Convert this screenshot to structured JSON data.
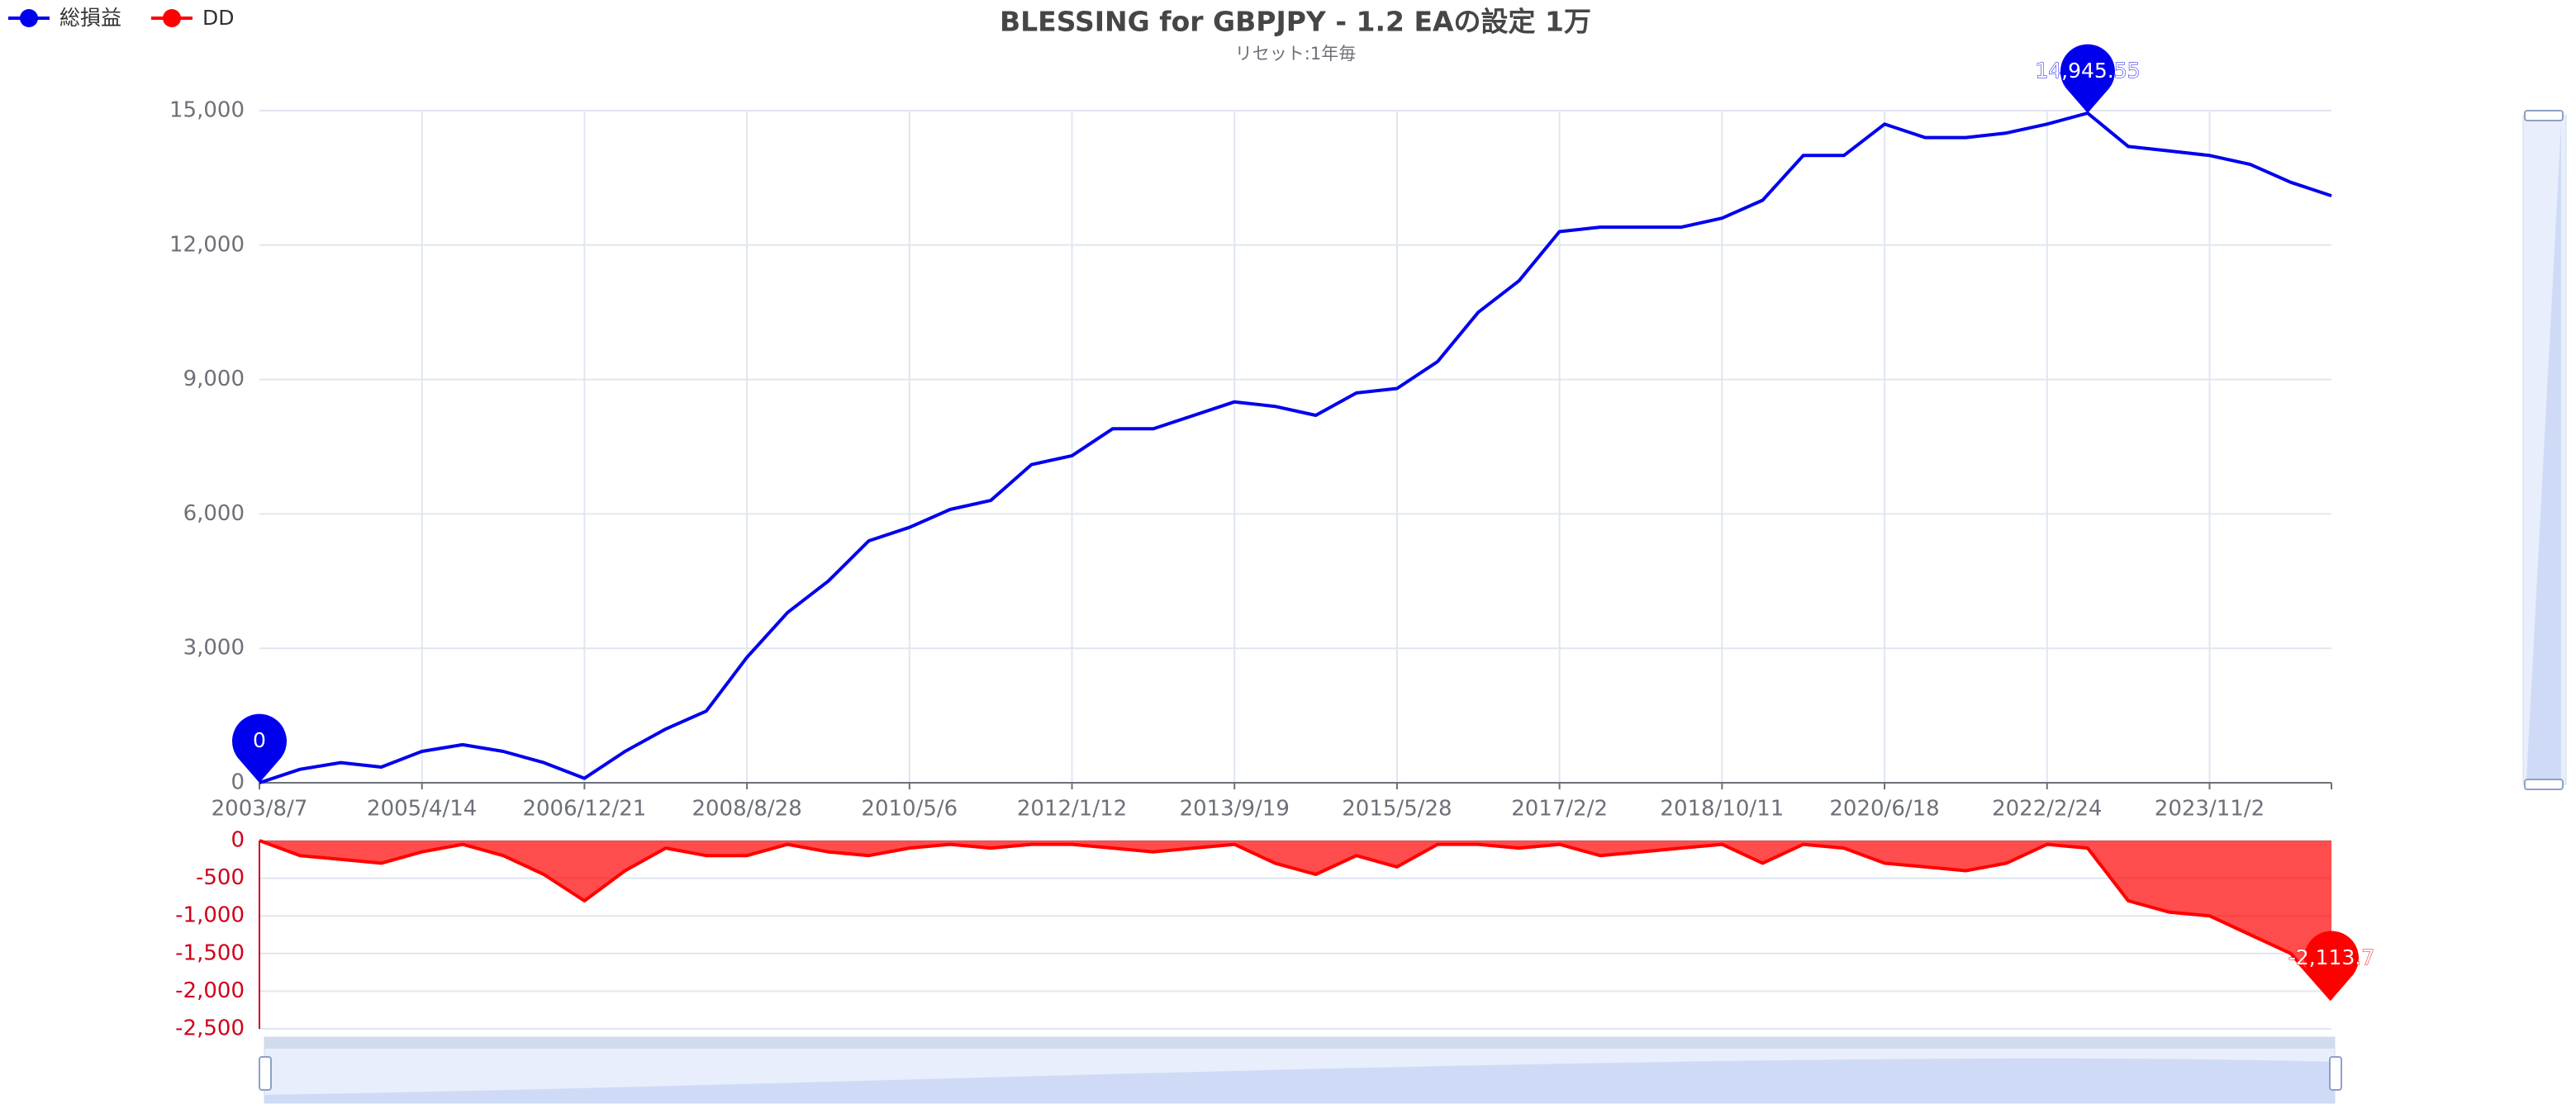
{
  "chart_data": [
    {
      "type": "line",
      "title": "BLESSING for GBPJPY - 1.2 EAの設定 1万",
      "subtitle": "リセット:1年毎",
      "categories": [
        "2003/8/7",
        null,
        null,
        null,
        "2005/4/14",
        null,
        null,
        null,
        "2006/12/21",
        null,
        null,
        null,
        "2008/8/28",
        null,
        null,
        null,
        "2010/5/6",
        null,
        null,
        null,
        "2012/1/12",
        null,
        null,
        null,
        "2013/9/19",
        null,
        null,
        null,
        "2015/5/28",
        null,
        null,
        null,
        "2017/2/2",
        null,
        null,
        null,
        "2018/10/11",
        null,
        null,
        null,
        "2020/6/18",
        null,
        null,
        null,
        "2022/2/24",
        null,
        null,
        null,
        "2023/11/2",
        null,
        null,
        null
      ],
      "series": [
        {
          "name": "総損益",
          "color": "#0000ee",
          "values": [
            0,
            300,
            450,
            350,
            700,
            850,
            700,
            450,
            100,
            700,
            1200,
            1600,
            2800,
            3800,
            4500,
            5400,
            5700,
            6100,
            6300,
            7100,
            7300,
            7900,
            7900,
            8200,
            8500,
            8400,
            8200,
            8700,
            8800,
            9400,
            10500,
            11200,
            12300,
            12400,
            12400,
            12400,
            12600,
            13000,
            14000,
            14000,
            14700,
            14400,
            14400,
            14500,
            14700,
            14945.55,
            14200,
            14100,
            14000,
            13800,
            13400,
            13100
          ],
          "value_labels": [
            "0",
            null,
            null,
            null,
            null,
            null,
            null,
            null,
            null,
            null,
            null,
            null,
            null,
            null,
            null,
            null,
            null,
            null,
            null,
            null,
            null,
            null,
            null,
            null,
            null,
            null,
            null,
            null,
            null,
            null,
            null,
            null,
            null,
            null,
            null,
            null,
            null,
            null,
            null,
            null,
            null,
            null,
            null,
            null,
            null,
            "14,945.55",
            null,
            null,
            null,
            null,
            null,
            null
          ]
        }
      ],
      "ylim": [
        0,
        15000
      ],
      "yticks": [
        0,
        {
          "value": 3000,
          "label": "3,000"
        },
        {
          "value": 6000,
          "label": "6,000"
        },
        {
          "value": 9000,
          "label": "9,000"
        },
        {
          "value": 12000,
          "label": "12,000"
        },
        {
          "value": 15000,
          "label": "15,000"
        }
      ],
      "grid": true
    },
    {
      "type": "area",
      "series": [
        {
          "name": "DD",
          "color": "#ff0000",
          "values": [
            0,
            -200,
            -250,
            -300,
            -150,
            -50,
            -200,
            -450,
            -800,
            -400,
            -100,
            -200,
            -200,
            -50,
            -150,
            -200,
            -100,
            -50,
            -100,
            -50,
            -50,
            -100,
            -150,
            -100,
            -50,
            -300,
            -450,
            -200,
            -350,
            -50,
            -50,
            -100,
            -50,
            -200,
            -150,
            -100,
            -50,
            -300,
            -50,
            -100,
            -300,
            -350,
            -400,
            -300,
            -50,
            -100,
            -800,
            -950,
            -1000,
            -1250,
            -1500,
            -2113.7
          ],
          "value_labels": [
            null,
            null,
            null,
            null,
            null,
            null,
            null,
            null,
            null,
            null,
            null,
            null,
            null,
            null,
            null,
            null,
            null,
            null,
            null,
            null,
            null,
            null,
            null,
            null,
            null,
            null,
            null,
            null,
            null,
            null,
            null,
            null,
            null,
            null,
            null,
            null,
            null,
            null,
            null,
            null,
            null,
            null,
            null,
            null,
            null,
            null,
            null,
            null,
            null,
            null,
            null,
            "-2,113.7"
          ]
        }
      ],
      "ylim": [
        -2500,
        0
      ],
      "yticks": [
        0,
        {
          "value": -500,
          "label": "-500"
        },
        {
          "value": -1000,
          "label": "-1,000"
        },
        {
          "value": -1500,
          "label": "-1,500"
        },
        {
          "value": -2000,
          "label": "-2,000"
        },
        {
          "value": -2500,
          "label": "-2,500"
        }
      ],
      "grid": true
    }
  ]
}
